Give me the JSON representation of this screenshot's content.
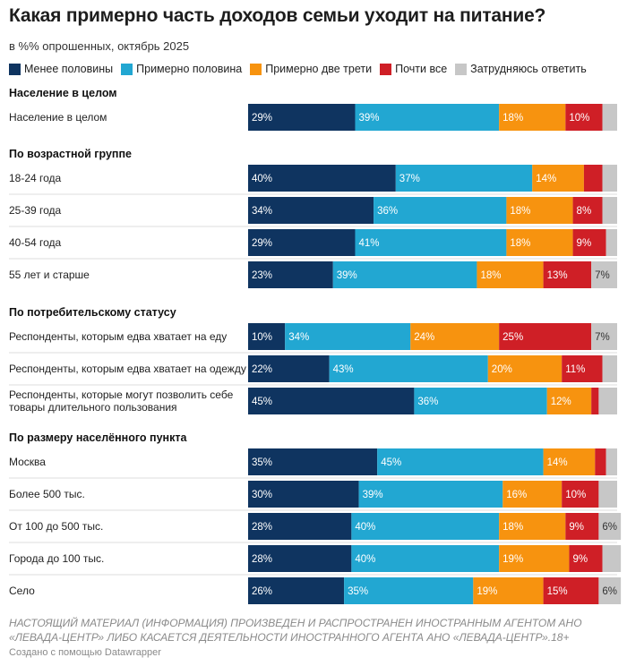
{
  "title": "Какая примерно часть доходов семьи уходит на питание?",
  "subtitle": "в %% опрошенных, октябрь 2025",
  "footnote": "НАСТОЯЩИЙ МАТЕРИАЛ (ИНФОРМАЦИЯ) ПРОИЗВЕДЕН И РАСПРОСТРАНЕН ИНОСТРАННЫМ АГЕНТОМ АНО «ЛЕВАДА-ЦЕНТР» ЛИБО КАСАЕТСЯ ДЕЯТЕЛЬНОСТИ ИНОСТРАННОГО АГЕНТА АНО «ЛЕВАДА-ЦЕНТР».18+",
  "credit": "Создано с помощью Datawrapper",
  "colors": {
    "separator": "#dddddd",
    "label_light": "#ffffff",
    "label_dark": "#333333"
  },
  "chart_data": {
    "type": "stacked-bar-horizontal",
    "title": "Какая примерно часть доходов семьи уходит на питание?",
    "unit": "%",
    "xlim": [
      0,
      100
    ],
    "series": [
      {
        "name": "Менее половины",
        "color": "#0f3460"
      },
      {
        "name": "Примерно половина",
        "color": "#22a7d2"
      },
      {
        "name": "Примерно две трети",
        "color": "#f7930f"
      },
      {
        "name": "Почти все",
        "color": "#cf1f26"
      },
      {
        "name": "Затрудняюсь ответить",
        "color": "#c7c7c7"
      }
    ],
    "groups": [
      {
        "name": "Население в целом",
        "rows": [
          {
            "label": [
              "Население в целом"
            ],
            "values": [
              29,
              39,
              18,
              10,
              4
            ],
            "labels": [
              "29%",
              "39%",
              "18%",
              "10%",
              ""
            ]
          }
        ]
      },
      {
        "name": "По возрастной группе",
        "rows": [
          {
            "label": [
              "18-24 года"
            ],
            "values": [
              40,
              37,
              14,
              5,
              4
            ],
            "labels": [
              "40%",
              "37%",
              "14%",
              "",
              ""
            ]
          },
          {
            "label": [
              "25-39 года"
            ],
            "values": [
              34,
              36,
              18,
              8,
              4
            ],
            "labels": [
              "34%",
              "36%",
              "18%",
              "8%",
              ""
            ]
          },
          {
            "label": [
              "40-54 года"
            ],
            "values": [
              29,
              41,
              18,
              9,
              3
            ],
            "labels": [
              "29%",
              "41%",
              "18%",
              "9%",
              ""
            ]
          },
          {
            "label": [
              "55 лет и старше"
            ],
            "values": [
              23,
              39,
              18,
              13,
              7
            ],
            "labels": [
              "23%",
              "39%",
              "18%",
              "13%",
              "7%"
            ]
          }
        ]
      },
      {
        "name": "По потребительскому статусу",
        "rows": [
          {
            "label": [
              "Респонденты, которым едва хватает на еду"
            ],
            "values": [
              10,
              34,
              24,
              25,
              7
            ],
            "labels": [
              "10%",
              "34%",
              "24%",
              "25%",
              "7%"
            ]
          },
          {
            "label": [
              "Респонденты, которым едва хватает на одежду"
            ],
            "values": [
              22,
              43,
              20,
              11,
              4
            ],
            "labels": [
              "22%",
              "43%",
              "20%",
              "11%",
              ""
            ]
          },
          {
            "label": [
              "Респонденты, которые могут позволить себе",
              "товары длительного пользования"
            ],
            "values": [
              45,
              36,
              12,
              2,
              5
            ],
            "labels": [
              "45%",
              "36%",
              "12%",
              "",
              ""
            ]
          }
        ]
      },
      {
        "name": "По размеру населённого пункта",
        "rows": [
          {
            "label": [
              "Москва"
            ],
            "values": [
              35,
              45,
              14,
              3,
              3
            ],
            "labels": [
              "35%",
              "45%",
              "14%",
              "",
              ""
            ]
          },
          {
            "label": [
              "Более 500 тыс."
            ],
            "values": [
              30,
              39,
              16,
              10,
              5
            ],
            "labels": [
              "30%",
              "39%",
              "16%",
              "10%",
              ""
            ]
          },
          {
            "label": [
              "От 100 до 500 тыс."
            ],
            "values": [
              28,
              40,
              18,
              9,
              6
            ],
            "labels": [
              "28%",
              "40%",
              "18%",
              "9%",
              "6%"
            ]
          },
          {
            "label": [
              "Города до 100 тыс."
            ],
            "values": [
              28,
              40,
              19,
              9,
              5
            ],
            "labels": [
              "28%",
              "40%",
              "19%",
              "9%",
              ""
            ]
          },
          {
            "label": [
              "Село"
            ],
            "values": [
              26,
              35,
              19,
              15,
              6
            ],
            "labels": [
              "26%",
              "35%",
              "19%",
              "15%",
              "6%"
            ]
          }
        ]
      }
    ]
  }
}
